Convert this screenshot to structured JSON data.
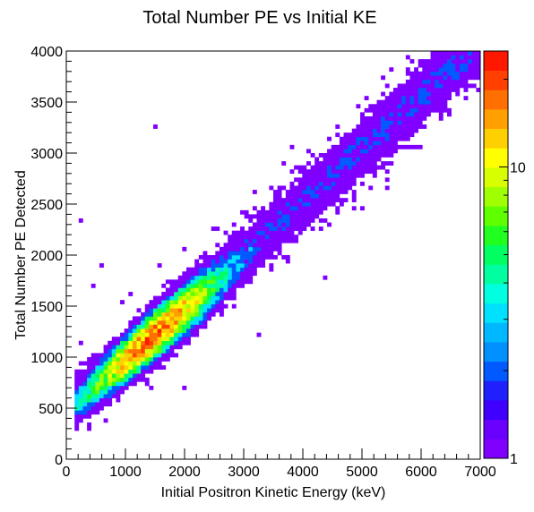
{
  "chart_data": {
    "type": "heatmap",
    "title": "Total Number PE vs Initial KE",
    "xlabel": "Initial Positron Kinetic Energy (keV)",
    "ylabel": "Total Number PE Detected",
    "xlim": [
      0,
      7000
    ],
    "ylim": [
      0,
      4000
    ],
    "x_ticks": [
      "0",
      "1000",
      "2000",
      "3000",
      "4000",
      "5000",
      "6000",
      "7000"
    ],
    "y_ticks": [
      "0",
      "500",
      "1000",
      "1500",
      "2000",
      "2500",
      "3000",
      "3500",
      "4000"
    ],
    "color_scale": {
      "type": "log",
      "range": [
        1,
        25
      ],
      "tick_labels": [
        "1",
        "10"
      ],
      "palette": [
        "#7f00ff",
        "#6a00ff",
        "#4000ff",
        "#2020ff",
        "#005aff",
        "#0090ff",
        "#00b8ff",
        "#00e0ff",
        "#00ffe0",
        "#00ffa0",
        "#00ff60",
        "#20ff20",
        "#60ff00",
        "#a0ff00",
        "#d8ff00",
        "#ffff00",
        "#ffd000",
        "#ffa000",
        "#ff7000",
        "#ff4000",
        "#ff1800"
      ]
    },
    "trend": {
      "description": "counts concentrated along a linear band",
      "x": [
        200,
        6800
      ],
      "y": [
        540,
        3980
      ]
    },
    "peak_count_region": {
      "x": [
        700,
        2000
      ],
      "y": [
        900,
        1700
      ]
    },
    "grid": false,
    "legend": "none"
  }
}
